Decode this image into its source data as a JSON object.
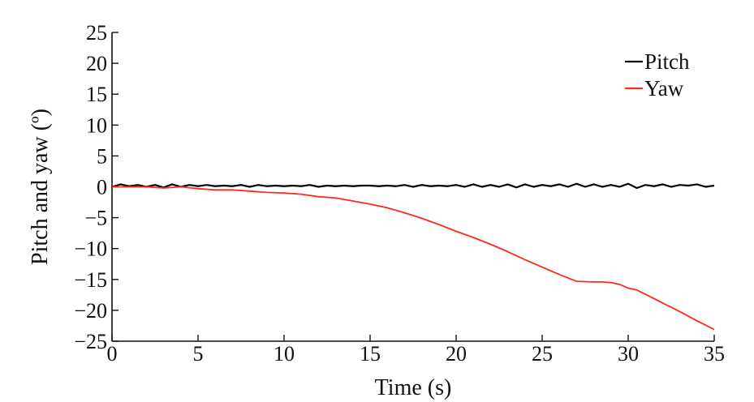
{
  "chart_data": {
    "type": "line",
    "title": "",
    "xlabel": "Time (s)",
    "ylabel": "Pitch and yaw (º)",
    "xlim": [
      0,
      35
    ],
    "ylim": [
      -25,
      25
    ],
    "xticks": [
      0,
      5,
      10,
      15,
      20,
      25,
      30,
      35
    ],
    "yticks": [
      25,
      20,
      15,
      10,
      5,
      0,
      -5,
      -10,
      -15,
      -20,
      -25
    ],
    "xtick_labels": [
      "0",
      "5",
      "10",
      "15",
      "20",
      "25",
      "30",
      "35"
    ],
    "ytick_labels": [
      "25",
      "20",
      "15",
      "10",
      "5",
      "0",
      "−5",
      "−10",
      "−15",
      "−20",
      "−25"
    ],
    "grid": false,
    "legend_position": "top-right",
    "series": [
      {
        "name": "Pitch",
        "color": "#000000",
        "x": [
          0,
          0.5,
          1.0,
          1.5,
          2.0,
          2.5,
          3.0,
          3.5,
          4.0,
          4.5,
          5.0,
          5.5,
          6.0,
          6.5,
          7.0,
          7.5,
          8.0,
          8.5,
          9.0,
          9.5,
          10.0,
          10.5,
          11.0,
          11.5,
          12.0,
          12.5,
          13.0,
          13.5,
          14.0,
          14.5,
          15.0,
          15.5,
          16.0,
          16.5,
          17.0,
          17.5,
          18.0,
          18.5,
          19.0,
          19.5,
          20.0,
          20.5,
          21.0,
          21.5,
          22.0,
          22.5,
          23.0,
          23.5,
          24.0,
          24.5,
          25.0,
          25.5,
          26.0,
          26.5,
          27.0,
          27.5,
          28.0,
          28.5,
          29.0,
          29.5,
          30.0,
          30.5,
          31.0,
          31.5,
          32.0,
          32.5,
          33.0,
          33.5,
          34.0,
          34.5,
          35.0
        ],
        "values": [
          0.0,
          0.4,
          0.1,
          0.3,
          0.0,
          0.3,
          -0.1,
          0.4,
          0.0,
          0.3,
          0.1,
          0.3,
          0.1,
          0.2,
          0.1,
          0.3,
          0.0,
          0.3,
          0.1,
          0.2,
          0.1,
          0.2,
          0.1,
          0.3,
          0.0,
          0.2,
          0.1,
          0.2,
          0.1,
          0.2,
          0.2,
          0.1,
          0.2,
          0.1,
          0.3,
          0.0,
          0.3,
          0.1,
          0.2,
          0.1,
          0.3,
          0.0,
          0.4,
          0.0,
          0.3,
          0.0,
          0.4,
          -0.1,
          0.4,
          0.0,
          0.3,
          0.1,
          0.4,
          0.0,
          0.5,
          0.0,
          0.4,
          0.0,
          0.3,
          0.0,
          0.5,
          -0.2,
          0.3,
          0.1,
          0.4,
          0.0,
          0.3,
          0.2,
          0.4,
          0.0,
          0.2
        ]
      },
      {
        "name": "Yaw",
        "color": "#ff2a1a",
        "x": [
          0,
          1,
          2,
          3,
          4,
          5,
          6,
          7,
          8,
          9,
          10,
          11,
          12,
          13,
          14,
          15,
          16,
          17,
          18,
          19,
          20,
          21,
          22,
          23,
          24,
          25,
          26,
          27,
          28,
          28.5,
          29,
          29.5,
          30,
          30.5,
          31,
          32,
          33,
          34,
          35
        ],
        "values": [
          0.0,
          0.0,
          0.0,
          -0.2,
          0.0,
          -0.3,
          -0.5,
          -0.5,
          -0.7,
          -0.9,
          -1.0,
          -1.2,
          -1.6,
          -1.8,
          -2.3,
          -2.8,
          -3.4,
          -4.2,
          -5.1,
          -6.1,
          -7.2,
          -8.2,
          -9.3,
          -10.5,
          -11.8,
          -13.0,
          -14.2,
          -15.3,
          -15.4,
          -15.4,
          -15.5,
          -15.8,
          -16.4,
          -16.7,
          -17.4,
          -18.8,
          -20.2,
          -21.7,
          -23.1
        ]
      }
    ]
  }
}
